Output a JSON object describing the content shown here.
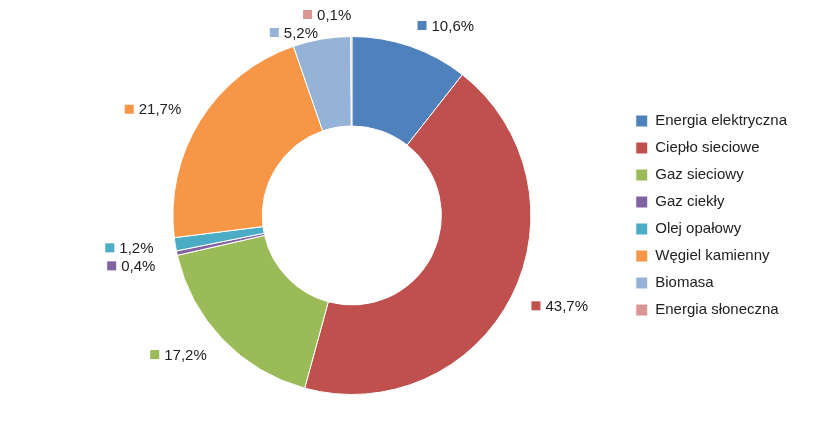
{
  "chart_data": {
    "type": "doughnut",
    "categories": [
      "Energia elektryczna",
      "Ciepło sieciowe",
      "Gaz sieciowy",
      "Gaz ciekły",
      "Olej opałowy",
      "Węgiel kamienny",
      "Biomasa",
      "Energia słoneczna"
    ],
    "values": [
      10.6,
      43.7,
      17.2,
      0.4,
      1.2,
      21.7,
      5.2,
      0.1
    ],
    "value_labels": [
      "10,6%",
      "43,7%",
      "17,2%",
      "0,4%",
      "1,2%",
      "21,7%",
      "5,2%",
      "0,1%"
    ],
    "colors": [
      "#4f81bd",
      "#c0504d",
      "#9bbb59",
      "#8064a2",
      "#4bacc6",
      "#f79646",
      "#95b3d7",
      "#d99694"
    ],
    "legend": "right",
    "data_labels": true
  }
}
